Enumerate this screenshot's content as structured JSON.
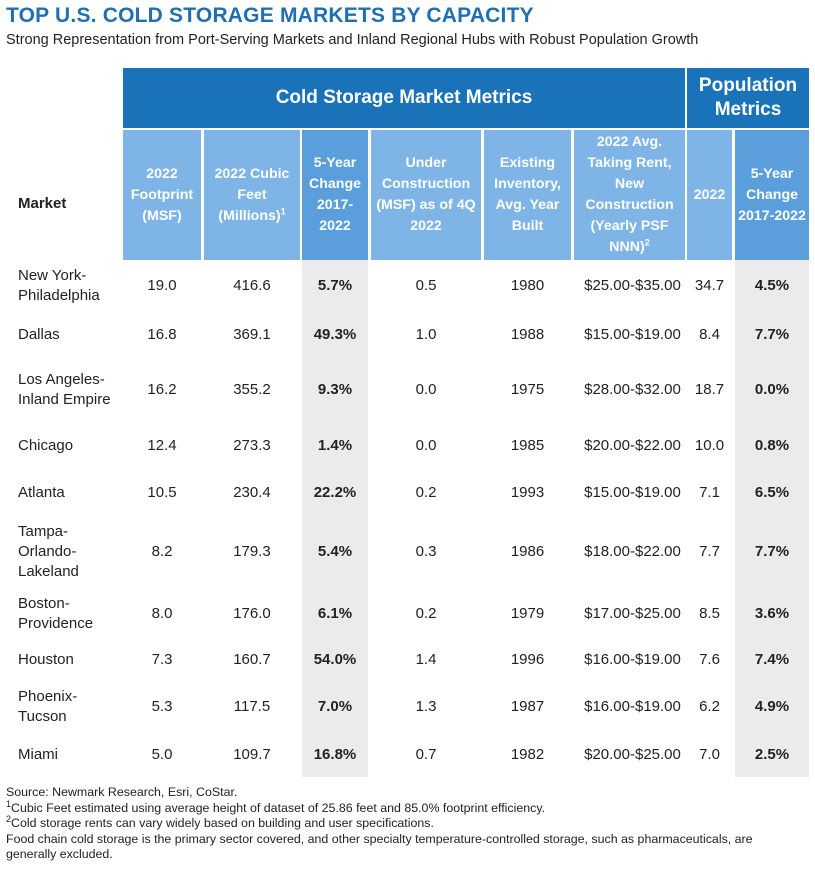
{
  "title": "TOP U.S. COLD STORAGE MARKETS BY CAPACITY",
  "subtitle": "Strong Representation from Port-Serving Markets and Inland Regional Hubs with Robust Population Growth",
  "groups": {
    "market_metrics": "Cold Storage Market Metrics",
    "population_metrics": "Population Metrics"
  },
  "headers": {
    "market": "Market",
    "footprint": "2022 Footprint (MSF)",
    "cubic_feet": "2022 Cubic Feet (Millions)",
    "cubic_feet_note": "1",
    "change": "5-Year Change 2017-2022",
    "under_construction": "Under Construction (MSF) as of 4Q 2022",
    "year_built": "Existing Inventory, Avg. Year Built",
    "rent": "2022 Avg. Taking Rent, New Construction (Yearly PSF NNN)",
    "rent_note": "2",
    "pop_2022": "2022",
    "pop_change": "5-Year Change 2017-2022"
  },
  "rows": [
    {
      "market": "New York-Philadelphia",
      "footprint": "19.0",
      "cubic_feet": "416.6",
      "change": "5.7%",
      "under_construction": "0.5",
      "year_built": "1980",
      "rent": "$25.00-$35.00",
      "pop_2022": "34.7",
      "pop_change": "4.5%"
    },
    {
      "market": "Dallas",
      "footprint": "16.8",
      "cubic_feet": "369.1",
      "change": "49.3%",
      "under_construction": "1.0",
      "year_built": "1988",
      "rent": "$15.00-$19.00",
      "pop_2022": "8.4",
      "pop_change": "7.7%"
    },
    {
      "market": "Los Angeles-Inland Empire",
      "footprint": "16.2",
      "cubic_feet": "355.2",
      "change": "9.3%",
      "under_construction": "0.0",
      "year_built": "1975",
      "rent": "$28.00-$32.00",
      "pop_2022": "18.7",
      "pop_change": "0.0%"
    },
    {
      "market": "Chicago",
      "footprint": "12.4",
      "cubic_feet": "273.3",
      "change": "1.4%",
      "under_construction": "0.0",
      "year_built": "1985",
      "rent": "$20.00-$22.00",
      "pop_2022": "10.0",
      "pop_change": "0.8%"
    },
    {
      "market": "Atlanta",
      "footprint": "10.5",
      "cubic_feet": "230.4",
      "change": "22.2%",
      "under_construction": "0.2",
      "year_built": "1993",
      "rent": "$15.00-$19.00",
      "pop_2022": "7.1",
      "pop_change": "6.5%"
    },
    {
      "market": "Tampa-Orlando-Lakeland",
      "footprint": "8.2",
      "cubic_feet": "179.3",
      "change": "5.4%",
      "under_construction": "0.3",
      "year_built": "1986",
      "rent": "$18.00-$22.00",
      "pop_2022": "7.7",
      "pop_change": "7.7%"
    },
    {
      "market": "Boston-Providence",
      "footprint": "8.0",
      "cubic_feet": "176.0",
      "change": "6.1%",
      "under_construction": "0.2",
      "year_built": "1979",
      "rent": "$17.00-$25.00",
      "pop_2022": "8.5",
      "pop_change": "3.6%"
    },
    {
      "market": "Houston",
      "footprint": "7.3",
      "cubic_feet": "160.7",
      "change": "54.0%",
      "under_construction": "1.4",
      "year_built": "1996",
      "rent": "$16.00-$19.00",
      "pop_2022": "7.6",
      "pop_change": "7.4%"
    },
    {
      "market": "Phoenix-Tucson",
      "footprint": "5.3",
      "cubic_feet": "117.5",
      "change": "7.0%",
      "under_construction": "1.3",
      "year_built": "1987",
      "rent": "$16.00-$19.00",
      "pop_2022": "6.2",
      "pop_change": "4.9%"
    },
    {
      "market": "Miami",
      "footprint": "5.0",
      "cubic_feet": "109.7",
      "change": "16.8%",
      "under_construction": "0.7",
      "year_built": "1982",
      "rent": "$20.00-$25.00",
      "pop_2022": "7.0",
      "pop_change": "2.5%"
    }
  ],
  "footnotes": {
    "source": "Source: Newmark Research, Esri, CoStar.",
    "note1_mark": "1",
    "note1": "Cubic Feet estimated using average height of dataset of 25.86 feet and 85.0% footprint efficiency.",
    "note2_mark": "2",
    "note2": "Cold storage rents can vary widely based on building and user specifications.",
    "note3": "Food chain cold storage is the primary sector covered, and other specialty temperature-controlled storage, such as pharmaceuticals, are generally excluded."
  },
  "colors": {
    "title": "#1f6fb3",
    "header_band": "#1a73b8",
    "subheader": "#7fb5e6",
    "subheader_highlight": "#5a9fdc",
    "highlight_column": "#ebebeb"
  }
}
